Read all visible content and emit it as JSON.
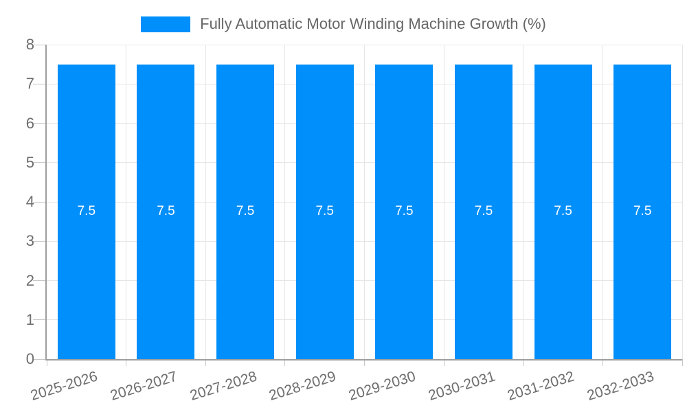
{
  "legend": {
    "items": [
      {
        "label": "Fully Automatic Motor Winding Machine Growth (%)",
        "color": "#008FFB"
      }
    ]
  },
  "chart_data": {
    "type": "bar",
    "title": "Fully Automatic Motor Winding Machine Growth (%)",
    "categories": [
      "2025-2026",
      "2026-2027",
      "2027-2028",
      "2028-2029",
      "2029-2030",
      "2030-2031",
      "2031-2032",
      "2032-2033"
    ],
    "values": [
      7.5,
      7.5,
      7.5,
      7.5,
      7.5,
      7.5,
      7.5,
      7.5
    ],
    "data_labels": [
      "7.5",
      "7.5",
      "7.5",
      "7.5",
      "7.5",
      "7.5",
      "7.5",
      "7.5"
    ],
    "xlabel": "",
    "ylabel": "",
    "ylim": [
      0,
      8
    ],
    "yticks": [
      0,
      1,
      2,
      3,
      4,
      5,
      6,
      7,
      8
    ],
    "grid": true,
    "legend_position": "top",
    "x_labels_rotated": true
  },
  "colors": {
    "bar": "#008FFB",
    "bar_label": "#ffffff",
    "grid": "#e6e6e6",
    "axis": "#9e9e9e",
    "tick": "#c8c8c8",
    "axis_text": "#6e6e6e",
    "legend_text": "#666666",
    "background": "#ffffff"
  }
}
